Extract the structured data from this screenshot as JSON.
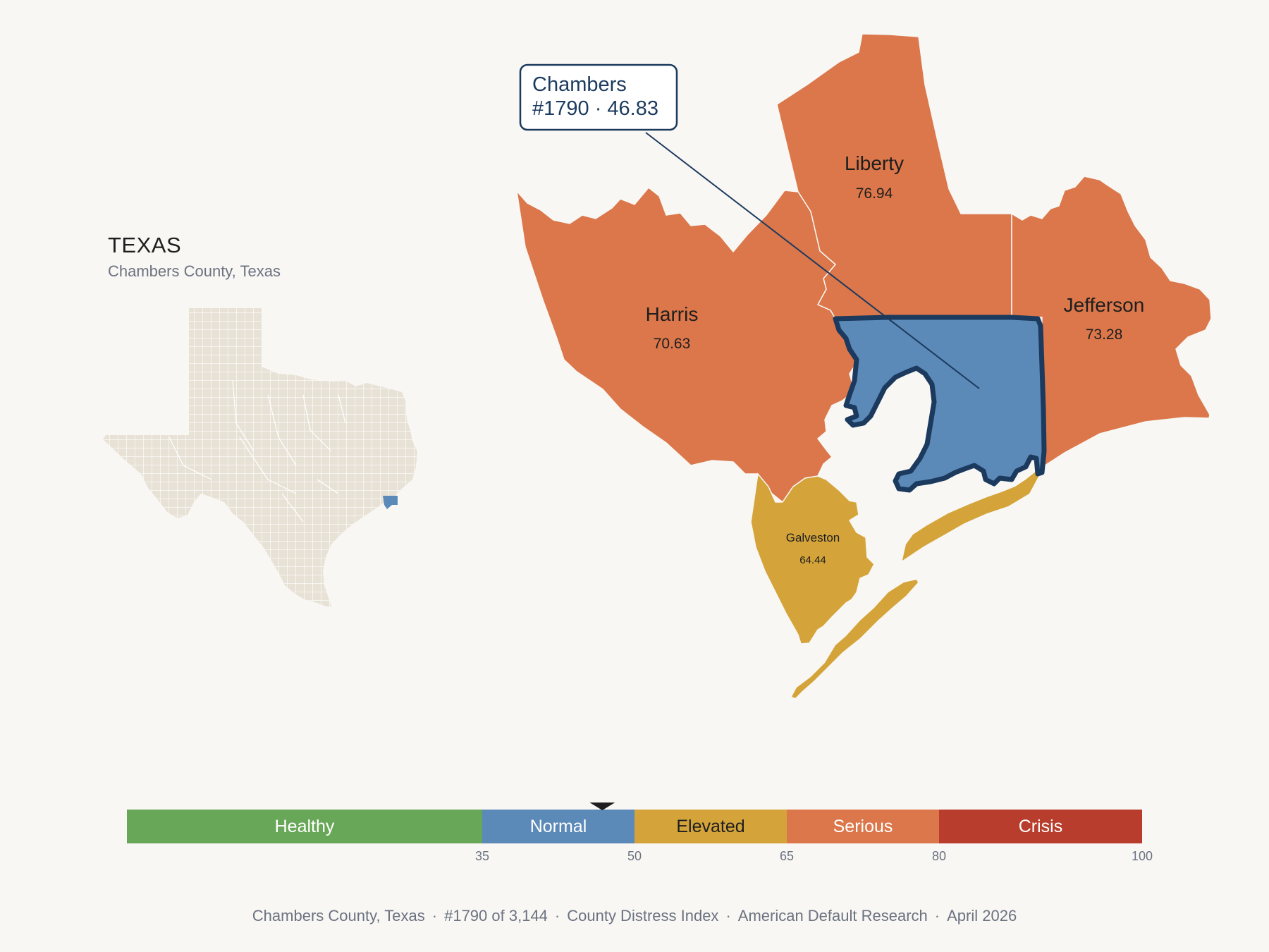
{
  "inset": {
    "state_name": "TEXAS",
    "subtitle": "Chambers County, Texas"
  },
  "callout": {
    "line1": "Chambers",
    "line2": "#1790 · 46.83"
  },
  "counties": [
    {
      "id": "harris",
      "name": "Harris",
      "value": "70.63",
      "category": "Serious",
      "color": "#db774a"
    },
    {
      "id": "liberty",
      "name": "Liberty",
      "value": "76.94",
      "category": "Serious",
      "color": "#db774a"
    },
    {
      "id": "jefferson",
      "name": "Jefferson",
      "value": "73.28",
      "category": "Serious",
      "color": "#db774a"
    },
    {
      "id": "galveston",
      "name": "Galveston",
      "value": "64.44",
      "category": "Elevated",
      "color": "#d4a43a"
    },
    {
      "id": "chambers",
      "name": "Chambers",
      "value": "46.83",
      "category": "Normal",
      "color": "#5b89b8"
    }
  ],
  "scale": {
    "min": 0,
    "max": 100,
    "marker_value": 46.83,
    "bands": [
      {
        "label": "Healthy",
        "from": 0,
        "to": 35,
        "color": "#67a757"
      },
      {
        "label": "Normal",
        "from": 35,
        "to": 50,
        "color": "#5b89b8"
      },
      {
        "label": "Elevated",
        "from": 50,
        "to": 65,
        "color": "#d4a43a"
      },
      {
        "label": "Serious",
        "from": 65,
        "to": 80,
        "color": "#db774a"
      },
      {
        "label": "Crisis",
        "from": 80,
        "to": 100,
        "color": "#b83d2c"
      }
    ],
    "ticks": [
      "35",
      "50",
      "65",
      "80",
      "100"
    ]
  },
  "footer": {
    "county": "Chambers County, Texas",
    "rank": "#1790 of 3,144",
    "index_name": "County Distress Index",
    "org": "American Default Research",
    "date": "April 2026",
    "separator": "·"
  },
  "colors": {
    "background": "#f9f7f4",
    "inset_fill": "#e8e2d6",
    "highlight_outline": "#1c3a5e"
  }
}
